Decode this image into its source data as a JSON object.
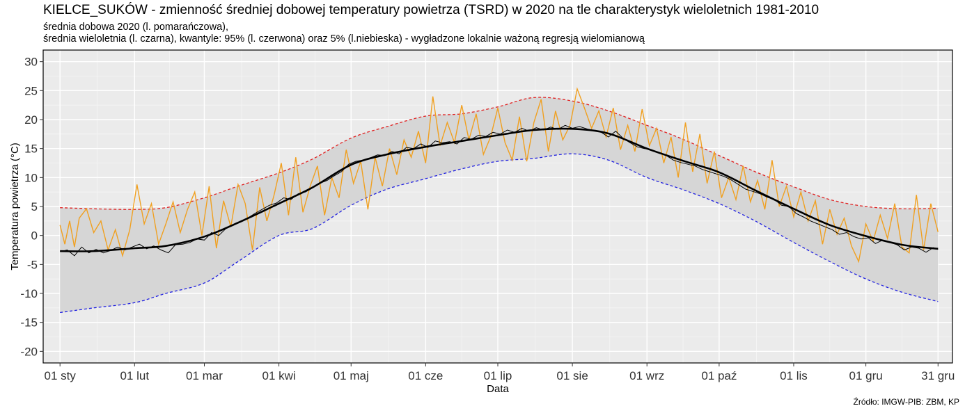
{
  "chart_data": {
    "type": "line",
    "title": "KIELCE_SUKÓW - zmienność średniej dobowej temperatury powietrza (TSRD) w 2020 na tle charakterystyk wieloletnich 1981-2010",
    "subtitle_line1": "średnia dobowa 2020 (l. pomarańczowa),",
    "subtitle_line2": "średnia wieloletnia (l. czarna), kwantyle: 95% (l. czerwona) oraz 5% (l.niebieska) - wygładzone lokalnie ważoną regresją wielomianową",
    "caption": "Źródło: IMGW-PIB: ZBM, KP",
    "xlabel": "Data",
    "ylabel": "Temperatura powietrza (°C)",
    "xlim": [
      -6,
      372
    ],
    "ylim": [
      -22,
      32
    ],
    "y_ticks": [
      -20,
      -15,
      -10,
      -5,
      0,
      5,
      10,
      15,
      20,
      25,
      30
    ],
    "x_ticks": [
      {
        "label": "01 sty",
        "day": 1
      },
      {
        "label": "01 lut",
        "day": 32
      },
      {
        "label": "01 mar",
        "day": 61
      },
      {
        "label": "01 kwi",
        "day": 92
      },
      {
        "label": "01 maj",
        "day": 122
      },
      {
        "label": "01 cze",
        "day": 153
      },
      {
        "label": "01 lip",
        "day": 183
      },
      {
        "label": "01 sie",
        "day": 214
      },
      {
        "label": "01 wrz",
        "day": 245
      },
      {
        "label": "01 paź",
        "day": 275
      },
      {
        "label": "01 lis",
        "day": 306
      },
      {
        "label": "01 gru",
        "day": 336
      },
      {
        "label": "31 gru",
        "day": 366
      }
    ],
    "grid": true,
    "colors": {
      "panel": "#ebebeb",
      "grid_major": "#ffffff",
      "grid_minor": "#f5f5f5",
      "band": "#d6d6d6",
      "daily_2020": "#f0a020",
      "mean": "#000000",
      "mean_raw": "#000000",
      "q95": "#e02020",
      "q05": "#2020e0"
    },
    "series": {
      "q95": {
        "x": [
          1,
          15,
          32,
          45,
          61,
          75,
          92,
          106,
          122,
          137,
          153,
          168,
          183,
          198,
          214,
          229,
          245,
          260,
          275,
          290,
          306,
          321,
          336,
          351,
          366
        ],
        "values": [
          4.8,
          4.6,
          4.5,
          4.8,
          6.5,
          8.5,
          10.8,
          13.2,
          16.8,
          18.8,
          20.6,
          21.0,
          22.2,
          23.8,
          23.2,
          21.5,
          19.0,
          16.6,
          13.8,
          11.0,
          8.4,
          6.2,
          5.0,
          4.6,
          4.7
        ]
      },
      "q05": {
        "x": [
          1,
          15,
          32,
          45,
          61,
          75,
          92,
          106,
          122,
          137,
          153,
          168,
          183,
          198,
          214,
          229,
          245,
          260,
          275,
          290,
          306,
          321,
          336,
          351,
          366
        ],
        "values": [
          -13.3,
          -12.5,
          -11.6,
          -10.0,
          -8.2,
          -4.5,
          0.0,
          1.2,
          5.2,
          8.0,
          9.8,
          11.5,
          12.8,
          13.3,
          14.1,
          13.0,
          10.0,
          7.9,
          5.5,
          2.5,
          -1.2,
          -4.5,
          -7.5,
          -9.8,
          -11.4
        ]
      },
      "mean": {
        "x": [
          1,
          15,
          32,
          45,
          61,
          75,
          92,
          106,
          122,
          137,
          153,
          168,
          183,
          198,
          214,
          229,
          245,
          260,
          275,
          290,
          306,
          321,
          336,
          351,
          366
        ],
        "values": [
          -2.7,
          -2.7,
          -2.2,
          -1.8,
          -0.2,
          2.2,
          5.5,
          8.3,
          12.2,
          14.0,
          15.3,
          16.3,
          17.3,
          18.2,
          18.4,
          17.6,
          15.0,
          12.9,
          10.9,
          7.8,
          4.6,
          1.8,
          -0.1,
          -1.6,
          -2.3
        ]
      },
      "daily_2020": {
        "x": [
          1,
          3,
          5,
          7,
          9,
          12,
          15,
          18,
          21,
          24,
          27,
          30,
          33,
          36,
          39,
          42,
          45,
          48,
          51,
          54,
          57,
          60,
          63,
          66,
          69,
          72,
          75,
          78,
          81,
          84,
          87,
          90,
          93,
          96,
          99,
          102,
          105,
          108,
          111,
          114,
          117,
          120,
          123,
          126,
          129,
          132,
          135,
          138,
          141,
          144,
          147,
          150,
          153,
          156,
          159,
          162,
          165,
          168,
          171,
          174,
          177,
          180,
          183,
          186,
          189,
          192,
          195,
          198,
          201,
          204,
          207,
          210,
          213,
          216,
          219,
          222,
          225,
          228,
          231,
          234,
          237,
          240,
          243,
          246,
          249,
          252,
          255,
          258,
          261,
          264,
          267,
          270,
          273,
          276,
          279,
          282,
          285,
          288,
          291,
          294,
          297,
          300,
          303,
          306,
          309,
          312,
          315,
          318,
          321,
          324,
          327,
          330,
          333,
          336,
          339,
          342,
          345,
          348,
          351,
          354,
          357,
          360,
          363,
          366
        ],
        "values": [
          1.8,
          -1.5,
          2.5,
          -2.0,
          3.0,
          4.6,
          0.5,
          2.5,
          -2.5,
          1.0,
          -3.5,
          1.0,
          8.8,
          2.0,
          5.5,
          -1.5,
          2.0,
          5.8,
          0.5,
          4.5,
          7.5,
          0.0,
          8.5,
          -2.2,
          6.0,
          1.5,
          8.8,
          5.5,
          -2.5,
          8.3,
          2.5,
          7.0,
          12.5,
          3.5,
          13.5,
          4.0,
          8.5,
          12.0,
          3.5,
          10.0,
          6.5,
          14.8,
          9.0,
          12.8,
          4.5,
          13.5,
          8.5,
          15.0,
          10.5,
          16.5,
          13.5,
          18.0,
          12.5,
          24.0,
          15.5,
          19.5,
          16.0,
          22.5,
          16.5,
          21.0,
          14.0,
          17.0,
          22.0,
          16.0,
          13.0,
          20.5,
          12.8,
          19.5,
          23.5,
          14.5,
          21.5,
          16.5,
          19.0,
          25.3,
          22.0,
          18.5,
          21.5,
          17.0,
          22.0,
          14.8,
          19.0,
          14.5,
          21.8,
          15.5,
          18.5,
          12.5,
          17.0,
          10.0,
          19.5,
          11.0,
          17.5,
          9.0,
          14.5,
          6.5,
          10.0,
          6.2,
          12.0,
          5.8,
          9.5,
          4.5,
          13.0,
          5.0,
          8.5,
          3.2,
          7.5,
          2.5,
          6.0,
          -1.5,
          4.5,
          0.2,
          3.0,
          -1.8,
          -4.5,
          2.0,
          -1.0,
          3.5,
          -0.5,
          5.5,
          -2.0,
          -3.0,
          7.0,
          -2.5,
          5.5,
          0.6
        ]
      },
      "mean_raw": {
        "x": [
          1,
          4,
          7,
          10,
          13,
          16,
          19,
          22,
          25,
          28,
          31,
          34,
          37,
          40,
          43,
          46,
          49,
          52,
          55,
          58,
          61,
          64,
          67,
          70,
          73,
          76,
          79,
          82,
          85,
          88,
          91,
          94,
          97,
          100,
          103,
          106,
          109,
          112,
          115,
          118,
          121,
          124,
          127,
          130,
          133,
          136,
          139,
          142,
          145,
          148,
          151,
          154,
          157,
          160,
          163,
          166,
          169,
          172,
          175,
          178,
          181,
          184,
          187,
          190,
          193,
          196,
          199,
          202,
          205,
          208,
          211,
          214,
          217,
          220,
          223,
          226,
          229,
          232,
          235,
          238,
          241,
          244,
          247,
          250,
          253,
          256,
          259,
          262,
          265,
          268,
          271,
          274,
          277,
          280,
          283,
          286,
          289,
          292,
          295,
          298,
          301,
          304,
          307,
          310,
          313,
          316,
          319,
          322,
          325,
          328,
          331,
          334,
          337,
          340,
          343,
          346,
          349,
          352,
          355,
          358,
          361,
          364,
          366
        ],
        "values": [
          -2.8,
          -2.5,
          -3.5,
          -2.0,
          -3.0,
          -2.4,
          -3.0,
          -2.6,
          -2.0,
          -2.5,
          -2.0,
          -1.5,
          -2.3,
          -1.8,
          -2.5,
          -3.0,
          -1.6,
          -1.5,
          -1.2,
          -0.6,
          -0.8,
          0.5,
          0.0,
          1.2,
          1.8,
          2.3,
          3.0,
          3.8,
          4.5,
          5.2,
          5.6,
          6.5,
          6.2,
          7.2,
          7.5,
          8.2,
          9.0,
          9.5,
          10.3,
          11.0,
          12.3,
          12.8,
          13.0,
          13.4,
          13.9,
          13.8,
          14.5,
          14.1,
          15.2,
          15.0,
          15.8,
          15.2,
          16.3,
          16.0,
          16.2,
          15.8,
          16.9,
          16.6,
          17.3,
          17.1,
          17.8,
          17.5,
          18.2,
          17.8,
          18.5,
          18.0,
          18.6,
          18.2,
          18.7,
          18.3,
          19.0,
          18.5,
          18.8,
          18.4,
          18.1,
          17.8,
          17.0,
          18.0,
          16.8,
          16.0,
          15.3,
          15.0,
          14.8,
          14.2,
          13.8,
          13.0,
          12.6,
          12.3,
          12.0,
          11.4,
          11.0,
          10.6,
          10.2,
          9.6,
          8.8,
          8.0,
          7.6,
          7.2,
          6.6,
          6.2,
          5.2,
          5.0,
          3.8,
          3.2,
          2.5,
          2.0,
          1.5,
          1.0,
          0.2,
          0.5,
          -0.2,
          -0.6,
          -0.4,
          -1.4,
          -0.8,
          -1.2,
          -1.6,
          -2.5,
          -2.0,
          -2.2,
          -2.9,
          -2.1,
          -2.4
        ]
      }
    }
  }
}
